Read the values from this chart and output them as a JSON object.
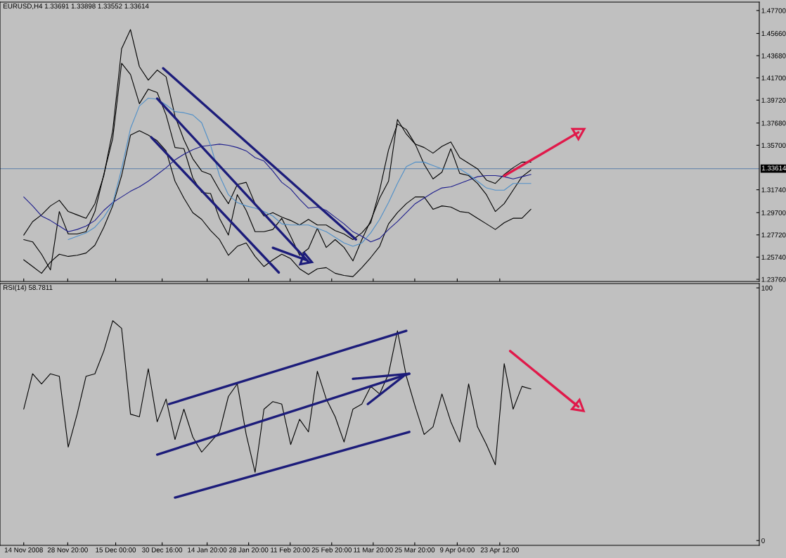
{
  "chart_data": [
    {
      "type": "line",
      "title": "EURUSD,H4 1.33691 1.33898 1.33552 1.33614",
      "xlim": [
        "2008-11-06",
        "2009-07-20"
      ],
      "ylim": [
        1.2357,
        1.4845
      ],
      "grid": false,
      "tick_labels": "y",
      "x": [
        "2008-11-14",
        "2008-11-17",
        "2008-11-20",
        "2008-11-23",
        "2008-11-26",
        "2008-11-29",
        "2008-12-02",
        "2008-12-05",
        "2008-12-08",
        "2008-12-11",
        "2008-12-14",
        "2008-12-17",
        "2008-12-20",
        "2008-12-23",
        "2008-12-26",
        "2008-12-29",
        "2009-01-01",
        "2009-01-04",
        "2009-01-07",
        "2009-01-10",
        "2009-01-13",
        "2009-01-16",
        "2009-01-19",
        "2009-01-22",
        "2009-01-25",
        "2009-01-28",
        "2009-01-31",
        "2009-02-03",
        "2009-02-06",
        "2009-02-09",
        "2009-02-12",
        "2009-02-15",
        "2009-02-18",
        "2009-02-21",
        "2009-02-24",
        "2009-02-27",
        "2009-03-02",
        "2009-03-05",
        "2009-03-08",
        "2009-03-11",
        "2009-03-14",
        "2009-03-17",
        "2009-03-20",
        "2009-03-23",
        "2009-03-26",
        "2009-03-29",
        "2009-04-01",
        "2009-04-04",
        "2009-04-07",
        "2009-04-10",
        "2009-04-13",
        "2009-04-16",
        "2009-04-19",
        "2009-04-22",
        "2009-04-25",
        "2009-04-28",
        "2009-05-01",
        "2009-05-04"
      ],
      "xticks": [
        {
          "value": "2008-11-14",
          "label": null
        },
        {
          "value": "2008-11-28T20:00",
          "label": null
        },
        {
          "value": "2008-12-15",
          "label": null
        },
        {
          "value": "2008-12-30T16:00",
          "label": null
        },
        {
          "value": "2009-01-14T20:00",
          "label": null
        },
        {
          "value": "2009-01-28T20:00",
          "label": null
        },
        {
          "value": "2009-02-11T20:00",
          "label": null
        },
        {
          "value": "2009-02-25T20:00",
          "label": null
        },
        {
          "value": "2009-03-11T20:00",
          "label": null
        },
        {
          "value": "2009-03-25T20:00",
          "label": null
        },
        {
          "value": "2009-04-09T04:00",
          "label": null
        },
        {
          "value": "2009-04-23T12:00",
          "label": null
        }
      ],
      "yticks": [
        {
          "value": 1.477,
          "label": "1.47700"
        },
        {
          "value": 1.4566,
          "label": "1.45660"
        },
        {
          "value": 1.4368,
          "label": "1.43680"
        },
        {
          "value": 1.417,
          "label": "1.41700"
        },
        {
          "value": 1.3972,
          "label": "1.39720"
        },
        {
          "value": 1.3768,
          "label": "1.37680"
        },
        {
          "value": 1.357,
          "label": "1.35700"
        },
        {
          "value": 1.3174,
          "label": "1.31740"
        },
        {
          "value": 1.297,
          "label": "1.29700"
        },
        {
          "value": 1.2772,
          "label": "1.27720"
        },
        {
          "value": 1.2574,
          "label": "1.25740"
        },
        {
          "value": 1.2376,
          "label": "1.23760"
        }
      ],
      "ref_lines": [
        {
          "axis": "y",
          "value": 1.33614,
          "label": "1.33614",
          "color": "#5a7ea8"
        }
      ],
      "series": [
        {
          "color": "#000000",
          "values": [
            1.273,
            1.271,
            1.26,
            1.246,
            1.298,
            1.278,
            1.278,
            1.28,
            1.298,
            1.331,
            1.363,
            1.43,
            1.42,
            1.394,
            1.407,
            1.404,
            1.384,
            1.355,
            1.354,
            1.328,
            1.315,
            1.314,
            1.292,
            1.277,
            1.313,
            1.299,
            1.28,
            1.28,
            1.282,
            1.292,
            1.276,
            1.259,
            1.265,
            1.283,
            1.266,
            1.273,
            1.266,
            1.254,
            1.273,
            1.29,
            1.31,
            1.325,
            1.38,
            1.367,
            1.358,
            1.34,
            1.327,
            1.333,
            1.354,
            1.332,
            1.33,
            1.323,
            1.313,
            1.298,
            1.305,
            1.317,
            1.329,
            1.335
          ]
        },
        {
          "color": "#000000",
          "values": [
            1.277,
            1.289,
            1.295,
            1.303,
            1.308,
            1.298,
            1.295,
            1.292,
            1.305,
            1.33,
            1.37,
            1.443,
            1.46,
            1.427,
            1.415,
            1.424,
            1.418,
            1.383,
            1.362,
            1.345,
            1.334,
            1.331,
            1.317,
            1.305,
            1.322,
            1.324,
            1.305,
            1.294,
            1.297,
            1.293,
            1.29,
            1.286,
            1.291,
            1.286,
            1.286,
            1.281,
            1.278,
            1.273,
            1.279,
            1.288,
            1.317,
            1.353,
            1.376,
            1.371,
            1.358,
            1.355,
            1.35,
            1.356,
            1.36,
            1.346,
            1.341,
            1.336,
            1.326,
            1.323,
            1.331,
            1.337,
            1.342,
            1.342
          ]
        },
        {
          "color": "#000000",
          "values": [
            1.255,
            1.249,
            1.243,
            1.253,
            1.26,
            1.258,
            1.259,
            1.261,
            1.268,
            1.284,
            1.303,
            1.33,
            1.366,
            1.37,
            1.366,
            1.361,
            1.352,
            1.325,
            1.31,
            1.297,
            1.291,
            1.281,
            1.273,
            1.259,
            1.267,
            1.27,
            1.258,
            1.249,
            1.255,
            1.26,
            1.256,
            1.247,
            1.242,
            1.247,
            1.248,
            1.243,
            1.241,
            1.24,
            1.248,
            1.257,
            1.267,
            1.287,
            1.297,
            1.305,
            1.311,
            1.311,
            1.3,
            1.303,
            1.302,
            1.298,
            1.297,
            1.292,
            1.287,
            1.282,
            1.288,
            1.292,
            1.292,
            1.3
          ]
        },
        {
          "color": "#1c1c8c",
          "values": [
            1.311,
            1.303,
            1.294,
            1.29,
            1.285,
            1.28,
            1.282,
            1.285,
            1.29,
            1.299,
            1.306,
            1.311,
            1.316,
            1.32,
            1.325,
            1.331,
            1.337,
            1.344,
            1.349,
            1.353,
            1.356,
            1.357,
            1.358,
            1.357,
            1.355,
            1.352,
            1.346,
            1.343,
            1.334,
            1.324,
            1.318,
            1.309,
            1.301,
            1.302,
            1.299,
            1.293,
            1.287,
            1.28,
            1.276,
            1.271,
            1.274,
            1.282,
            1.289,
            1.297,
            1.305,
            1.31,
            1.315,
            1.319,
            1.32,
            1.323,
            1.326,
            1.329,
            1.33,
            1.33,
            1.329,
            1.327,
            1.329,
            1.331
          ]
        },
        {
          "color": "#4f8fc8",
          "values": [
            null,
            null,
            null,
            null,
            null,
            1.273,
            1.276,
            1.279,
            1.284,
            1.293,
            1.305,
            1.336,
            1.372,
            1.392,
            1.399,
            1.398,
            1.393,
            1.387,
            1.386,
            1.384,
            1.377,
            1.357,
            1.33,
            1.313,
            1.306,
            1.303,
            1.301,
            1.298,
            1.294,
            1.287,
            1.286,
            1.286,
            1.286,
            1.283,
            1.28,
            1.275,
            1.27,
            1.267,
            1.27,
            1.279,
            1.291,
            1.306,
            1.323,
            1.338,
            1.342,
            1.342,
            1.339,
            1.336,
            1.336,
            1.336,
            1.331,
            1.325,
            1.319,
            1.317,
            1.317,
            1.323,
            1.323,
            1.323
          ]
        },
        {
          "color": "#1c1c7a",
          "x": [
            "2008-12-31",
            "2009-03-06"
          ],
          "values": [
            1.4256,
            1.2732
          ]
        },
        {
          "color": "#1c1c7a",
          "x": [
            "2008-12-29",
            "2009-02-18"
          ],
          "values": [
            1.3986,
            1.2532
          ]
        },
        {
          "color": "#1c1c7a",
          "x": [
            "2008-12-27",
            "2009-02-08"
          ],
          "values": [
            1.3641,
            1.2437
          ]
        },
        {
          "color": "#1c1c7a",
          "x": [
            "2009-02-06",
            "2009-02-17"
          ],
          "values": [
            1.2657,
            1.255
          ],
          "marker": "triangle"
        },
        {
          "color": "#e0194a",
          "x": [
            "2009-04-25",
            "2009-05-20"
          ],
          "values": [
            1.3297,
            1.3685
          ],
          "marker": "triangle"
        }
      ]
    },
    {
      "type": "line",
      "title": "RSI(14) 58.7811",
      "xlim": [
        "2008-11-06",
        "2009-07-20"
      ],
      "ylim": [
        -1.9,
        101.7
      ],
      "grid": false,
      "x": [
        "2008-11-14",
        "2008-11-17",
        "2008-11-20",
        "2008-11-23",
        "2008-11-26",
        "2008-11-29",
        "2008-12-02",
        "2008-12-05",
        "2008-12-08",
        "2008-12-11",
        "2008-12-14",
        "2008-12-17",
        "2008-12-20",
        "2008-12-23",
        "2008-12-26",
        "2008-12-29",
        "2009-01-01",
        "2009-01-04",
        "2009-01-07",
        "2009-01-10",
        "2009-01-13",
        "2009-01-16",
        "2009-01-19",
        "2009-01-22",
        "2009-01-25",
        "2009-01-28",
        "2009-01-31",
        "2009-02-03",
        "2009-02-06",
        "2009-02-09",
        "2009-02-12",
        "2009-02-15",
        "2009-02-18",
        "2009-02-21",
        "2009-02-24",
        "2009-02-27",
        "2009-03-02",
        "2009-03-05",
        "2009-03-08",
        "2009-03-11",
        "2009-03-14",
        "2009-03-17",
        "2009-03-20",
        "2009-03-23",
        "2009-03-26",
        "2009-03-29",
        "2009-04-01",
        "2009-04-04",
        "2009-04-07",
        "2009-04-10",
        "2009-04-13",
        "2009-04-16",
        "2009-04-19",
        "2009-04-22",
        "2009-04-25",
        "2009-04-28",
        "2009-05-01",
        "2009-05-04"
      ],
      "xticks": [
        {
          "value": "2008-11-14",
          "label": "14 Nov 2008"
        },
        {
          "value": "2008-11-28T20:00",
          "label": "28 Nov 20:00"
        },
        {
          "value": "2008-12-15",
          "label": "15 Dec 00:00"
        },
        {
          "value": "2008-12-30T16:00",
          "label": "30 Dec 16:00"
        },
        {
          "value": "2009-01-14T20:00",
          "label": "14 Jan 20:00"
        },
        {
          "value": "2009-01-28T20:00",
          "label": "28 Jan 20:00"
        },
        {
          "value": "2009-02-11T20:00",
          "label": "11 Feb 20:00"
        },
        {
          "value": "2009-02-25T20:00",
          "label": "25 Feb 20:00"
        },
        {
          "value": "2009-03-11T20:00",
          "label": "11 Mar 20:00"
        },
        {
          "value": "2009-03-25T20:00",
          "label": "25 Mar 20:00"
        },
        {
          "value": "2009-04-09T04:00",
          "label": "9 Apr 04:00"
        },
        {
          "value": "2009-04-23T12:00",
          "label": "23 Apr 12:00"
        }
      ],
      "yticks": [
        0,
        100
      ],
      "series": [
        {
          "color": "#000000",
          "values": [
            52,
            66,
            62,
            66,
            65,
            37,
            50,
            65,
            66,
            75,
            87,
            84,
            50,
            49,
            68,
            47,
            56,
            40,
            52,
            41,
            35,
            39,
            43,
            57,
            62,
            42,
            27,
            52,
            55,
            54,
            38,
            48,
            43,
            67,
            56,
            49,
            39,
            52,
            54,
            61,
            58,
            66,
            83,
            65,
            53,
            42,
            45,
            58,
            47,
            39,
            62,
            45,
            38,
            30,
            70,
            52,
            61,
            60
          ]
        },
        {
          "color": "#1c1c7a",
          "x": [
            "2009-01-02",
            "2009-03-23"
          ],
          "values": [
            54,
            83
          ]
        },
        {
          "color": "#1c1c7a",
          "x": [
            "2008-12-29",
            "2009-03-24"
          ],
          "values": [
            34,
            66
          ]
        },
        {
          "color": "#1c1c7a",
          "x": [
            "2009-01-04",
            "2009-03-24"
          ],
          "values": [
            17,
            43
          ]
        },
        {
          "color": "#1c1c7a",
          "x": [
            "2009-03-05",
            "2009-03-24"
          ],
          "values": [
            64,
            66
          ]
        },
        {
          "color": "#1c1c7a",
          "x": [
            "2009-03-10",
            "2009-03-22"
          ],
          "values": [
            54,
            65
          ]
        },
        {
          "color": "#e0194a",
          "x": [
            "2009-04-27",
            "2009-05-20"
          ],
          "values": [
            75,
            53
          ],
          "marker": "triangle"
        }
      ]
    }
  ]
}
